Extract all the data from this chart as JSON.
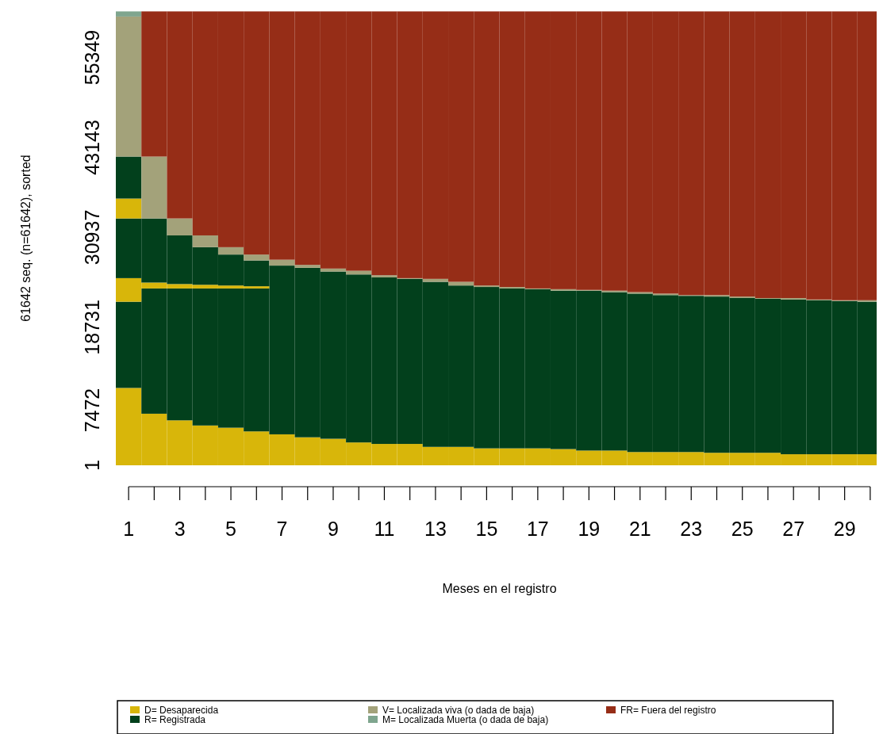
{
  "chart_data": {
    "type": "bar",
    "stacked": true,
    "xlabel": "Meses en el registro",
    "ylabel": "61642 seq. (n=61642), sorted",
    "x": [
      1,
      2,
      3,
      4,
      5,
      6,
      7,
      8,
      9,
      10,
      11,
      12,
      13,
      14,
      15,
      16,
      17,
      18,
      19,
      20,
      21,
      22,
      23,
      24,
      25,
      26,
      27,
      28,
      29,
      30
    ],
    "xlim": [
      0.5,
      30.5
    ],
    "xticks": [
      1,
      3,
      5,
      7,
      9,
      11,
      13,
      15,
      17,
      19,
      21,
      23,
      25,
      27,
      29
    ],
    "ylim": [
      0,
      61642
    ],
    "yticks": [
      1,
      7472,
      18731,
      30937,
      43143,
      55349
    ],
    "grid": false,
    "legend": "bottom",
    "series": [
      {
        "name": "D= Desaparecida",
        "color": "#d8b60a",
        "values": [
          10500,
          7000,
          6100,
          5400,
          5100,
          4600,
          4200,
          3800,
          3600,
          3100,
          2900,
          2900,
          2500,
          2500,
          2300,
          2300,
          2300,
          2200,
          2000,
          2000,
          1800,
          1800,
          1800,
          1700,
          1700,
          1700,
          1500,
          1500,
          1500,
          1500
        ]
      },
      {
        "name": "R= Registrada",
        "color": "#02401c",
        "values": [
          11700,
          17000,
          17900,
          18600,
          18900,
          19400,
          22900,
          23000,
          22700,
          22800,
          22600,
          22400,
          22400,
          21900,
          21900,
          21700,
          21600,
          21500,
          21700,
          21500,
          21500,
          21300,
          21200,
          21200,
          21000,
          20900,
          21000,
          20900,
          20800,
          20700
        ]
      },
      {
        "color": "#d8b60a",
        "values": [
          3200,
          800,
          600,
          500,
          400,
          300,
          0,
          0,
          0,
          0,
          0,
          0,
          0,
          0,
          0,
          0,
          0,
          0,
          0,
          0,
          0,
          0,
          0,
          0,
          0,
          0,
          0,
          0,
          0,
          0
        ]
      },
      {
        "color": "#02401c",
        "values": [
          8100,
          8700,
          6600,
          5100,
          4200,
          3500,
          0,
          0,
          0,
          0,
          0,
          0,
          0,
          0,
          0,
          0,
          0,
          0,
          0,
          0,
          0,
          0,
          0,
          0,
          0,
          0,
          0,
          0,
          0,
          0
        ]
      },
      {
        "color": "#d8b60a",
        "values": [
          2700,
          0,
          0,
          0,
          0,
          0,
          0,
          0,
          0,
          0,
          0,
          0,
          0,
          0,
          0,
          0,
          0,
          0,
          0,
          0,
          0,
          0,
          0,
          0,
          0,
          0,
          0,
          0,
          0,
          0
        ]
      },
      {
        "color": "#02401c",
        "values": [
          5700,
          0,
          0,
          0,
          0,
          0,
          0,
          0,
          0,
          0,
          0,
          0,
          0,
          0,
          0,
          0,
          0,
          0,
          0,
          0,
          0,
          0,
          0,
          0,
          0,
          0,
          0,
          0,
          0,
          0
        ]
      },
      {
        "name": "V= Localizada viva (o dada de baja)",
        "color": "#a3a27a",
        "values": [
          19000,
          8400,
          2300,
          1600,
          1000,
          800,
          800,
          400,
          400,
          500,
          300,
          100,
          400,
          500,
          200,
          200,
          100,
          200,
          100,
          200,
          200,
          200,
          100,
          200,
          200,
          100,
          200,
          100,
          100,
          200
        ]
      },
      {
        "name": "M= Localizada Muerta (o dada de baja)",
        "color": "#7fa58e",
        "values": [
          700,
          0,
          0,
          0,
          0,
          0,
          0,
          0,
          0,
          0,
          0,
          0,
          0,
          0,
          0,
          0,
          0,
          0,
          0,
          0,
          0,
          0,
          0,
          0,
          0,
          0,
          0,
          0,
          0,
          0
        ]
      },
      {
        "name": "FR= Fuera del registro",
        "color": "#962d17",
        "values": [
          0,
          19700,
          28100,
          30400,
          32000,
          33000,
          33700,
          34400,
          34900,
          35200,
          35800,
          36200,
          36300,
          36700,
          37200,
          37400,
          37600,
          37700,
          37800,
          37900,
          38100,
          38300,
          38500,
          38500,
          38700,
          38900,
          38900,
          39100,
          39200,
          39200
        ]
      }
    ]
  }
}
